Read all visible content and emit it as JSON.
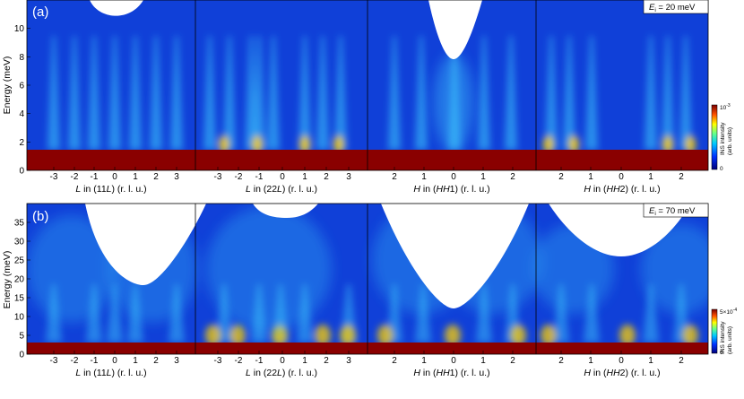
{
  "figure": {
    "panels": [
      {
        "label": "(a)",
        "ei_text": "E",
        "ei_sub": "i",
        "ei_value": " = 20 meV",
        "ylabel": "Energy (meV)",
        "yticks": [
          "0",
          "2",
          "4",
          "6",
          "8",
          "10"
        ],
        "ylim": [
          0,
          12
        ],
        "colorbar_max": "10",
        "colorbar_max_exp": "-3",
        "colorbar_min": "0",
        "colorbar_label": "INS intensity",
        "colorbar_units": "(arb. units)",
        "subplots": [
          {
            "xlabel_var": "L",
            "xlabel_mid": " in (11",
            "xlabel_var2": "L",
            "xlabel_end": ") (r. l. u.)",
            "xticks": [
              "-3",
              "-2",
              "-1",
              "0",
              "1",
              "2",
              "3"
            ]
          },
          {
            "xlabel_var": "L",
            "xlabel_mid": " in (22",
            "xlabel_var2": "L",
            "xlabel_end": ") (r. l. u.)",
            "xticks": [
              "-3",
              "-2",
              "-1",
              "0",
              "1",
              "2",
              "3"
            ]
          },
          {
            "xlabel_var": "H",
            "xlabel_mid": " in (",
            "xlabel_var2": "HH",
            "xlabel_end": "1) (r. l. u.)",
            "xticks": [
              "2",
              "1",
              "0",
              "1",
              "2"
            ]
          },
          {
            "xlabel_var": "H",
            "xlabel_mid": " in (",
            "xlabel_var2": "HH",
            "xlabel_end": "2) (r. l. u.)",
            "xticks": [
              "2",
              "1",
              "0",
              "1",
              "2"
            ]
          }
        ]
      },
      {
        "label": "(b)",
        "ei_text": "E",
        "ei_sub": "i",
        "ei_value": " = 70 meV",
        "ylabel": "Energy (meV)",
        "yticks": [
          "0",
          "5",
          "10",
          "15",
          "20",
          "25",
          "30",
          "35"
        ],
        "ylim": [
          0,
          40
        ],
        "colorbar_max": "5×10",
        "colorbar_max_exp": "-4",
        "colorbar_min": "0",
        "colorbar_label": "INS intensity",
        "colorbar_units": "(arb. units)",
        "subplots": [
          {
            "xlabel_var": "L",
            "xlabel_mid": " in (11",
            "xlabel_var2": "L",
            "xlabel_end": ") (r. l. u.)",
            "xticks": [
              "-3",
              "-2",
              "-1",
              "0",
              "1",
              "2",
              "3"
            ]
          },
          {
            "xlabel_var": "L",
            "xlabel_mid": " in (22",
            "xlabel_var2": "L",
            "xlabel_end": ") (r. l. u.)",
            "xticks": [
              "-3",
              "-2",
              "-1",
              "0",
              "1",
              "2",
              "3"
            ]
          },
          {
            "xlabel_var": "H",
            "xlabel_mid": " in (",
            "xlabel_var2": "HH",
            "xlabel_end": "1) (r. l. u.)",
            "xticks": [
              "2",
              "1",
              "0",
              "1",
              "2"
            ]
          },
          {
            "xlabel_var": "H",
            "xlabel_mid": " in (",
            "xlabel_var2": "HH",
            "xlabel_end": "2) (r. l. u.)",
            "xticks": [
              "2",
              "1",
              "0",
              "1",
              "2"
            ]
          }
        ]
      }
    ],
    "colors": {
      "background": "#1040d8",
      "elastic": "#8a0000",
      "mode": "#40d0ff",
      "hot": "#ffd000"
    }
  }
}
